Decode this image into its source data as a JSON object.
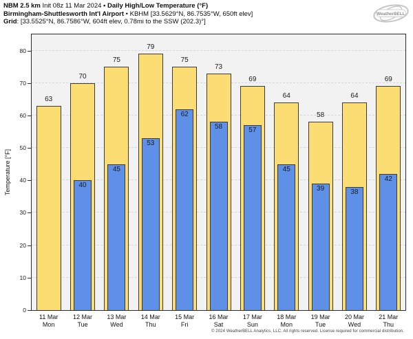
{
  "header": {
    "model": "NBM 2.5 km",
    "init": "Init 08z 11 Mar 2024",
    "bullet": "•",
    "product": "Daily High/Low Temperature (°F)",
    "station": "Birmingham-Shuttlesworth Int'l Airport",
    "station_meta": "KBHM [33.5629°N, 86.7535°W, 650ft elev]",
    "grid_label": "Grid",
    "grid_colon": ":",
    "grid_meta": "[33.5525°N, 86.7586°W, 604ft elev, 0.78mi to the SSW (202.3)°]"
  },
  "logo": {
    "brand": "WeatherBELL"
  },
  "chart_data": {
    "type": "bar",
    "title": "NBM 2.5 km Daily High/Low Temperature (°F) — Birmingham-Shuttlesworth Int'l Airport (KBHM)",
    "ylabel": "Temperature [°F]",
    "xlabel": "",
    "ylim": [
      0,
      85
    ],
    "yticks": [
      0,
      10,
      20,
      30,
      40,
      50,
      60,
      70,
      80
    ],
    "grid": "horizontal-dashed",
    "legend_position": "none",
    "plot_bg": "#f2f2f2",
    "bar_border_color": "#3a3a3a",
    "categories": [
      {
        "date": "11 Mar",
        "dow": "Mon"
      },
      {
        "date": "12 Mar",
        "dow": "Tue"
      },
      {
        "date": "13 Mar",
        "dow": "Wed"
      },
      {
        "date": "14 Mar",
        "dow": "Thu"
      },
      {
        "date": "15 Mar",
        "dow": "Fri"
      },
      {
        "date": "16 Mar",
        "dow": "Sat"
      },
      {
        "date": "17 Mar",
        "dow": "Sun"
      },
      {
        "date": "18 Mar",
        "dow": "Mon"
      },
      {
        "date": "19 Mar",
        "dow": "Tue"
      },
      {
        "date": "20 Mar",
        "dow": "Wed"
      },
      {
        "date": "21 Mar",
        "dow": "Thu"
      }
    ],
    "series": [
      {
        "name": "Daily High",
        "color": "#fbdd74",
        "values": [
          63,
          70,
          75,
          79,
          75,
          73,
          69,
          64,
          58,
          64,
          69
        ]
      },
      {
        "name": "Daily Low",
        "color": "#5e90e8",
        "values": [
          null,
          40,
          45,
          53,
          62,
          58,
          57,
          45,
          39,
          38,
          42
        ]
      }
    ]
  },
  "footer": "© 2024 WeatherBELL Analytics, LLC. All rights reserved. License required for commercial distribution."
}
